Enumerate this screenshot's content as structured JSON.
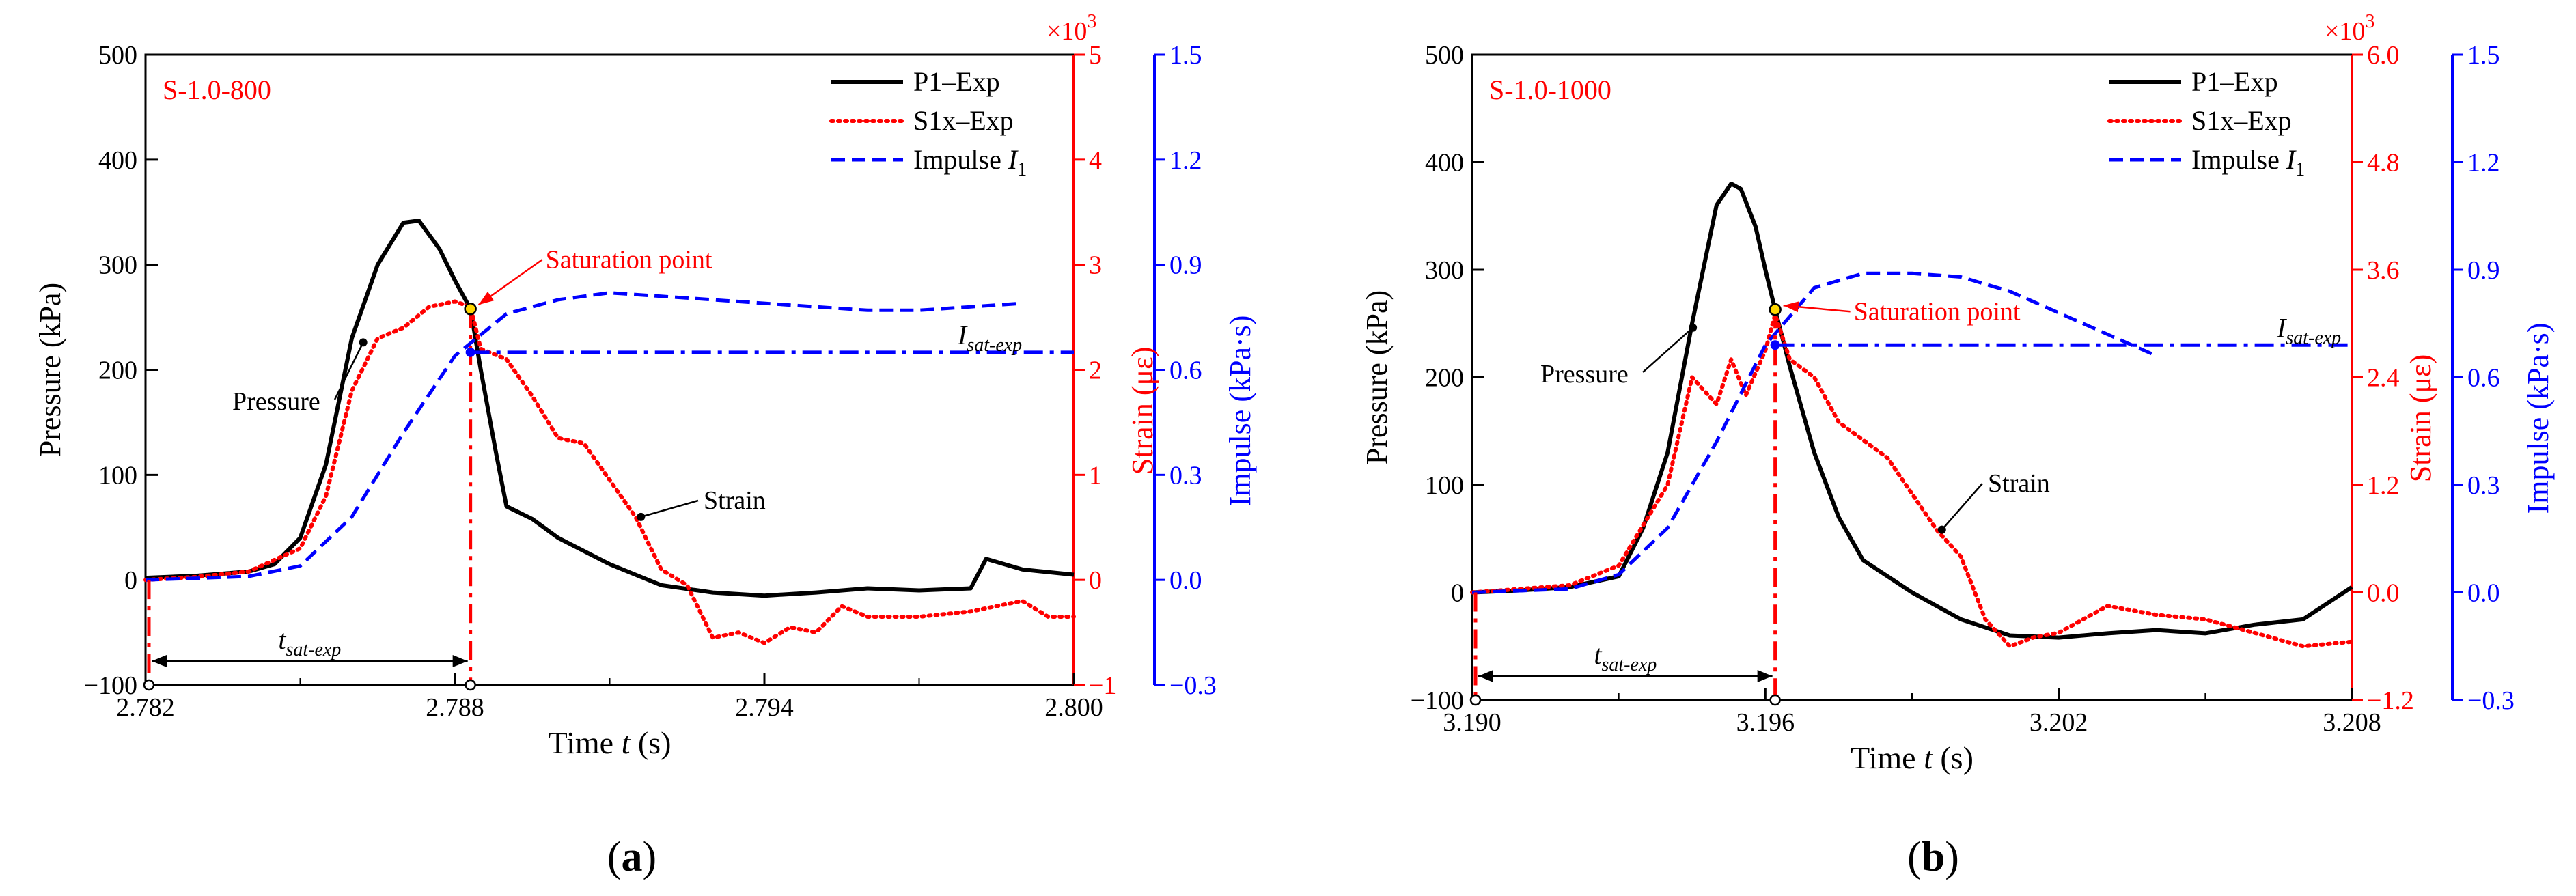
{
  "colors": {
    "pressure": "#000000",
    "strain": "#ff0000",
    "impulse": "#0000ff",
    "sat": "#ff0000"
  },
  "chart_data": [
    {
      "type": "line",
      "panel_label_open": "(",
      "panel_label": "a",
      "panel_label_close": ")",
      "sample_label": "S-1.0-800",
      "xlabel_main": "Time ",
      "xlabel_var": "t",
      "xlabel_unit": " (s)",
      "ylabel_left": "Pressure (kPa)",
      "ylabel_strain": "Strain (με)",
      "ylabel_impulse": "Impulse (kPa·s)",
      "strain_multiplier_base": "×10",
      "strain_multiplier_exp": "3",
      "xlim": [
        2.782,
        2.8
      ],
      "xticks": [
        2.782,
        2.788,
        2.794,
        2.8
      ],
      "xtick_labels": [
        "2.782",
        "2.788",
        "2.794",
        "2.800"
      ],
      "ylim_pressure": [
        -100,
        500
      ],
      "yticks_pressure": [
        "-100",
        "0",
        "100",
        "200",
        "300",
        "400",
        "500"
      ],
      "ylim_strain": [
        -1,
        5
      ],
      "yticks_strain": [
        "-1",
        "0",
        "1",
        "2",
        "3",
        "4",
        "5"
      ],
      "ylim_impulse": [
        -0.3,
        1.5
      ],
      "yticks_impulse": [
        "-0.3",
        "0.0",
        "0.3",
        "0.6",
        "0.9",
        "1.2",
        "1.5"
      ],
      "legend": {
        "position": "top-right",
        "entries": [
          {
            "key": "pressure",
            "label": "P1–Exp"
          },
          {
            "key": "strain",
            "label": "S1x–Exp"
          },
          {
            "key": "impulse",
            "label": "Impulse ",
            "sub": "1",
            "italic": "I"
          }
        ]
      },
      "annotations": {
        "saturation": "Saturation point",
        "pressure": "Pressure",
        "strain": "Strain",
        "t_sat_main": "t",
        "t_sat_sub": "sat-exp",
        "i_sat_main": "I",
        "i_sat_sub": "sat-exp"
      },
      "saturation_time": 2.7883,
      "saturation_pressure": 258,
      "saturation_impulse": 0.65,
      "series": [
        {
          "name": "P1–Exp",
          "axis": "pressure",
          "style": "solid",
          "x": [
            2.782,
            2.783,
            2.784,
            2.7845,
            2.785,
            2.7855,
            2.786,
            2.7865,
            2.787,
            2.7873,
            2.7877,
            2.788,
            2.7883,
            2.7885,
            2.7888,
            2.789,
            2.7895,
            2.79,
            2.791,
            2.792,
            2.793,
            2.794,
            2.795,
            2.796,
            2.797,
            2.798,
            2.7983,
            2.799,
            2.8
          ],
          "y": [
            2,
            4,
            8,
            15,
            40,
            110,
            230,
            300,
            340,
            342,
            315,
            285,
            258,
            200,
            120,
            70,
            58,
            40,
            15,
            -5,
            -12,
            -15,
            -12,
            -8,
            -10,
            -8,
            20,
            10,
            5
          ]
        },
        {
          "name": "S1x–Exp",
          "axis": "strain",
          "style": "dotted",
          "x": [
            2.782,
            2.783,
            2.784,
            2.785,
            2.7855,
            2.786,
            2.7865,
            2.787,
            2.7875,
            2.788,
            2.7883,
            2.7885,
            2.789,
            2.7895,
            2.79,
            2.7905,
            2.791,
            2.7915,
            2.792,
            2.7925,
            2.793,
            2.7935,
            2.794,
            2.7945,
            2.795,
            2.7955,
            2.796,
            2.797,
            2.798,
            2.799,
            2.7995,
            2.8
          ],
          "y": [
            0,
            0.03,
            0.08,
            0.3,
            0.8,
            1.8,
            2.3,
            2.4,
            2.6,
            2.65,
            2.6,
            2.2,
            2.1,
            1.75,
            1.35,
            1.3,
            0.95,
            0.6,
            0.1,
            -0.05,
            -0.55,
            -0.5,
            -0.6,
            -0.45,
            -0.5,
            -0.25,
            -0.35,
            -0.35,
            -0.3,
            -0.2,
            -0.35,
            -0.35
          ]
        },
        {
          "name": "Impulse I1",
          "axis": "impulse",
          "style": "dashed",
          "x": [
            2.782,
            2.784,
            2.785,
            2.786,
            2.787,
            2.788,
            2.789,
            2.79,
            2.791,
            2.792,
            2.793,
            2.794,
            2.795,
            2.796,
            2.797,
            2.798,
            2.799
          ],
          "y": [
            0,
            0.01,
            0.04,
            0.18,
            0.42,
            0.64,
            0.76,
            0.8,
            0.82,
            0.81,
            0.8,
            0.79,
            0.78,
            0.77,
            0.77,
            0.78,
            0.79
          ]
        },
        {
          "name": "I sat-exp",
          "axis": "impulse",
          "style": "dashdot",
          "x": [
            2.7883,
            2.8
          ],
          "y": [
            0.65,
            0.65
          ]
        }
      ]
    },
    {
      "type": "line",
      "panel_label_open": "(",
      "panel_label": "b",
      "panel_label_close": ")",
      "sample_label": "S-1.0-1000",
      "xlabel_main": "Time ",
      "xlabel_var": "t",
      "xlabel_unit": " (s)",
      "ylabel_left": "Pressure (kPa)",
      "ylabel_strain": "Strain (με)",
      "ylabel_impulse": "Impulse (kPa·s)",
      "strain_multiplier_base": "×10",
      "strain_multiplier_exp": "3",
      "xlim": [
        3.19,
        3.208
      ],
      "xticks": [
        3.19,
        3.196,
        3.202,
        3.208
      ],
      "xtick_labels": [
        "3.190",
        "3.196",
        "3.202",
        "3.208"
      ],
      "ylim_pressure": [
        -100,
        500
      ],
      "yticks_pressure": [
        "-100",
        "0",
        "100",
        "200",
        "300",
        "400",
        "500"
      ],
      "ylim_strain": [
        -1.2,
        6
      ],
      "yticks_strain": [
        "-1.2",
        "0.0",
        "1.2",
        "2.4",
        "3.6",
        "4.8",
        "6.0"
      ],
      "ylim_impulse": [
        -0.3,
        1.5
      ],
      "yticks_impulse": [
        "-0.3",
        "0.0",
        "0.3",
        "0.6",
        "0.9",
        "1.2",
        "1.5"
      ],
      "legend": {
        "position": "top-right",
        "entries": [
          {
            "key": "pressure",
            "label": "P1–Exp"
          },
          {
            "key": "strain",
            "label": "S1x–Exp"
          },
          {
            "key": "impulse",
            "label": "Impulse ",
            "sub": "1",
            "italic": "I"
          }
        ]
      },
      "annotations": {
        "saturation": "Saturation point",
        "pressure": "Pressure",
        "strain": "Strain",
        "t_sat_main": "t",
        "t_sat_sub": "sat-exp",
        "i_sat_main": "I",
        "i_sat_sub": "sat-exp"
      },
      "saturation_time": 3.1962,
      "saturation_pressure": 263,
      "saturation_impulse": 0.69,
      "series": [
        {
          "name": "P1–Exp",
          "axis": "pressure",
          "style": "solid",
          "x": [
            3.19,
            3.191,
            3.192,
            3.193,
            3.1935,
            3.194,
            3.1945,
            3.195,
            3.1953,
            3.1955,
            3.1958,
            3.196,
            3.1962,
            3.1965,
            3.197,
            3.1975,
            3.198,
            3.199,
            3.2,
            3.201,
            3.202,
            3.203,
            3.204,
            3.205,
            3.206,
            3.207,
            3.208
          ],
          "y": [
            0,
            2,
            5,
            15,
            60,
            130,
            250,
            360,
            380,
            375,
            340,
            300,
            263,
            210,
            130,
            70,
            30,
            0,
            -25,
            -40,
            -42,
            -38,
            -35,
            -38,
            -30,
            -25,
            5
          ]
        },
        {
          "name": "S1x–Exp",
          "axis": "strain",
          "style": "dotted",
          "x": [
            3.19,
            3.192,
            3.193,
            3.194,
            3.1945,
            3.195,
            3.1953,
            3.1956,
            3.196,
            3.1962,
            3.1965,
            3.197,
            3.1975,
            3.198,
            3.1985,
            3.199,
            3.1995,
            3.2,
            3.2005,
            3.201,
            3.2015,
            3.202,
            3.203,
            3.204,
            3.205,
            3.206,
            3.207,
            3.208
          ],
          "y": [
            0,
            0.08,
            0.3,
            1.2,
            2.4,
            2.1,
            2.6,
            2.2,
            2.7,
            3.1,
            2.6,
            2.4,
            1.9,
            1.7,
            1.5,
            1.1,
            0.7,
            0.4,
            -0.3,
            -0.6,
            -0.5,
            -0.45,
            -0.15,
            -0.25,
            -0.3,
            -0.45,
            -0.6,
            -0.55
          ]
        },
        {
          "name": "Impulse I1",
          "axis": "impulse",
          "style": "dashed",
          "x": [
            3.19,
            3.192,
            3.193,
            3.194,
            3.195,
            3.196,
            3.197,
            3.198,
            3.199,
            3.2,
            3.201,
            3.202,
            3.203,
            3.204
          ],
          "y": [
            0,
            0.01,
            0.05,
            0.18,
            0.42,
            0.69,
            0.85,
            0.89,
            0.89,
            0.88,
            0.84,
            0.78,
            0.72,
            0.66
          ]
        },
        {
          "name": "I sat-exp",
          "axis": "impulse",
          "style": "dashdot",
          "x": [
            3.1962,
            3.208
          ],
          "y": [
            0.69,
            0.69
          ]
        }
      ]
    }
  ]
}
